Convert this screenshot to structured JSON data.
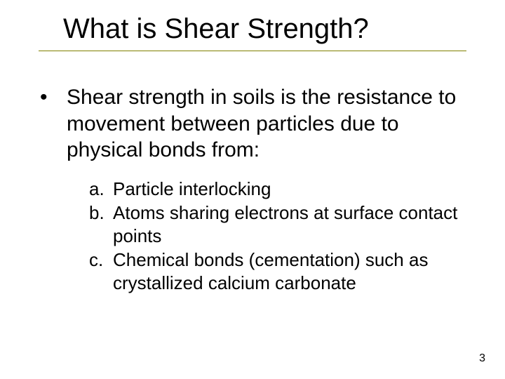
{
  "slide": {
    "title": "What is Shear Strength?",
    "title_fontsize": 40,
    "rule_color": "#808000",
    "background_color": "#ffffff",
    "text_color": "#000000",
    "bullet": {
      "marker": "•",
      "text": "Shear strength in soils is the resistance to movement between particles due to physical bonds from:",
      "fontsize": 30
    },
    "sub_items": [
      {
        "marker": "a.",
        "text": "Particle interlocking"
      },
      {
        "marker": "b.",
        "text": "Atoms sharing electrons at surface contact points"
      },
      {
        "marker": "c.",
        "text": "Chemical bonds (cementation) such as crystallized calcium carbonate"
      }
    ],
    "sub_fontsize": 26,
    "page_number": "3",
    "page_number_fontsize": 16
  }
}
